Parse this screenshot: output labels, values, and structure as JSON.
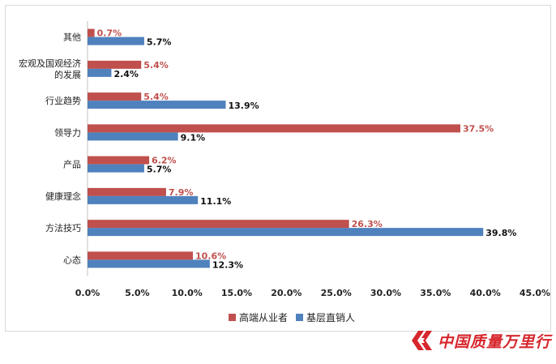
{
  "chart_data": {
    "type": "bar",
    "orientation": "horizontal",
    "categories": [
      "其他",
      "宏观及国观经济的发展",
      "行业趋势",
      "领导力",
      "产品",
      "健康理念",
      "方法技巧",
      "心态"
    ],
    "category_lines": [
      [
        "其他"
      ],
      [
        "宏观及国观经济",
        "的发展"
      ],
      [
        "行业趋势"
      ],
      [
        "领导力"
      ],
      [
        "产品"
      ],
      [
        "健康理念"
      ],
      [
        "方法技巧"
      ],
      [
        "心态"
      ]
    ],
    "series": [
      {
        "name": "高端从业者",
        "color": "#c0504d",
        "values": [
          0.7,
          5.4,
          5.4,
          37.5,
          6.2,
          7.9,
          26.3,
          10.6
        ],
        "labels": [
          "0.7%",
          "5.4%",
          "5.4%",
          "37.5%",
          "6.2%",
          "7.9%",
          "26.3%",
          "10.6%"
        ]
      },
      {
        "name": "基层直销人",
        "color": "#4f81bd",
        "values": [
          5.7,
          2.4,
          13.9,
          9.1,
          5.7,
          11.1,
          39.8,
          12.3
        ],
        "labels": [
          "5.7%",
          "2.4%",
          "13.9%",
          "9.1%",
          "5.7%",
          "11.1%",
          "39.8%",
          "12.3%"
        ]
      }
    ],
    "xlim": [
      0,
      45
    ],
    "xticks": [
      "0.0%",
      "5.0%",
      "10.0%",
      "15.0%",
      "20.0%",
      "25.0%",
      "30.0%",
      "35.0%",
      "40.0%",
      "45.0%"
    ],
    "title": "",
    "xlabel": "",
    "ylabel": "",
    "grid": false,
    "legend_position": "bottom"
  },
  "watermark": {
    "text": "中国质量万里行",
    "color": "#d6262c"
  }
}
